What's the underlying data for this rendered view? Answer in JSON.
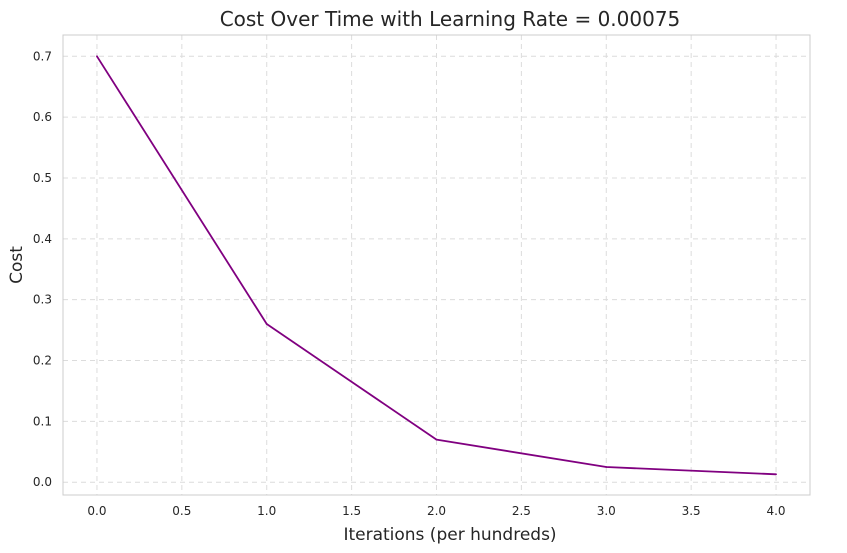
{
  "chart_data": {
    "type": "line",
    "title": "Cost Over Time with Learning Rate = 0.00075",
    "xlabel": "Iterations (per hundreds)",
    "ylabel": "Cost",
    "xlim": [
      -0.2,
      4.2
    ],
    "ylim": [
      -0.021,
      0.735
    ],
    "x_ticks": [
      0.0,
      0.5,
      1.0,
      1.5,
      2.0,
      2.5,
      3.0,
      3.5,
      4.0
    ],
    "x_tick_labels": [
      "0.0",
      "0.5",
      "1.0",
      "1.5",
      "2.0",
      "2.5",
      "3.0",
      "3.5",
      "4.0"
    ],
    "y_ticks": [
      0.0,
      0.1,
      0.2,
      0.3,
      0.4,
      0.5,
      0.6,
      0.7
    ],
    "y_tick_labels": [
      "0.0",
      "0.1",
      "0.2",
      "0.3",
      "0.4",
      "0.5",
      "0.6",
      "0.7"
    ],
    "grid": true,
    "series": [
      {
        "color": "#800080",
        "x": [
          0,
          1,
          2,
          3,
          4
        ],
        "y": [
          0.7,
          0.26,
          0.07,
          0.025,
          0.013
        ]
      }
    ]
  }
}
